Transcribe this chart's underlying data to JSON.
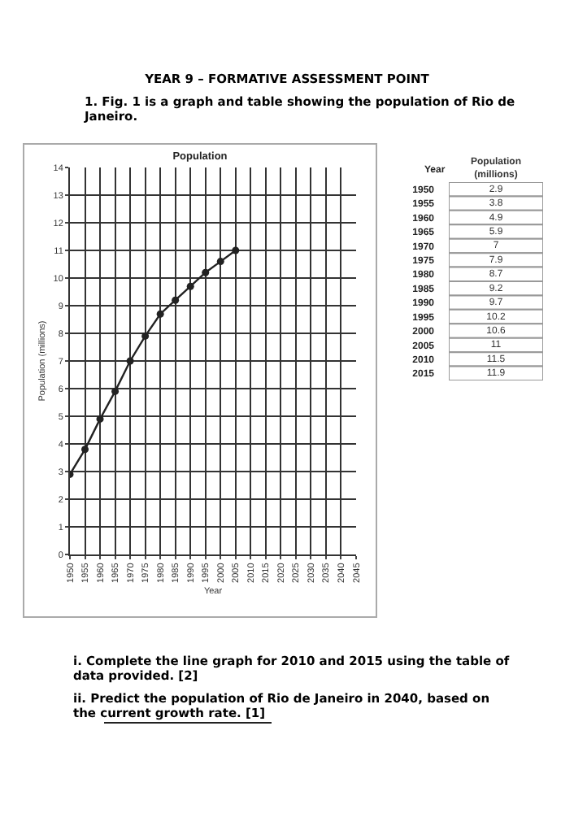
{
  "chart_data": [
    {
      "type": "line",
      "title": "Population",
      "xlabel": "Year",
      "ylabel": "Population (millions)",
      "x": [
        1950,
        1955,
        1960,
        1965,
        1970,
        1975,
        1980,
        1985,
        1990,
        1995,
        2000,
        2005
      ],
      "values": [
        2.9,
        3.8,
        4.9,
        5.9,
        7,
        7.9,
        8.7,
        9.2,
        9.7,
        10.2,
        10.6,
        11
      ],
      "color": "#222222",
      "marker": "circle",
      "grid": true,
      "xlim": [
        1950,
        2045
      ],
      "xticks": [
        1950,
        1955,
        1960,
        1965,
        1970,
        1975,
        1980,
        1985,
        1990,
        1995,
        2000,
        2005,
        2010,
        2015,
        2020,
        2025,
        2030,
        2035,
        2040,
        2045
      ],
      "ylim": [
        0,
        14
      ],
      "yticks": [
        0,
        1,
        2,
        3,
        4,
        5,
        6,
        7,
        8,
        9,
        10,
        11,
        12,
        13,
        14
      ],
      "annotations": [
        "YEAR 9 – FORMATIVE ASSESSMENT POINT",
        "1. Fig. 1 is a graph and table showing the population of Rio de Janeiro.",
        "i. Complete the line graph for 2010 and 2015 using the table of data provided. [2]",
        "ii. Predict the population of Rio de Janeiro in 2040, based on the current growth rate. [1]"
      ]
    },
    {
      "type": "heatmap",
      "ylabel": "Year",
      "data_labels": true,
      "categories": [
        "Population (millions)"
      ],
      "y_categories": [
        "1950",
        "1955",
        "1960",
        "1965",
        "1970",
        "1975",
        "1980",
        "1985",
        "1990",
        "1995",
        "2000",
        "2005",
        "2010",
        "2015"
      ],
      "cells": [
        [
          2.9
        ],
        [
          3.8
        ],
        [
          4.9
        ],
        [
          5.9
        ],
        [
          7
        ],
        [
          7.9
        ],
        [
          8.7
        ],
        [
          9.2
        ],
        [
          9.7
        ],
        [
          10.2
        ],
        [
          10.6
        ],
        [
          11
        ],
        [
          11.5
        ],
        [
          11.9
        ]
      ]
    }
  ]
}
